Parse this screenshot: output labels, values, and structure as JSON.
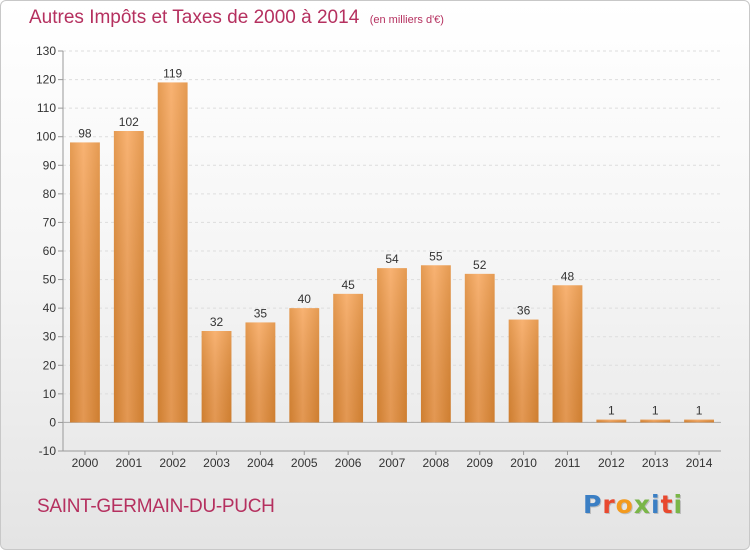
{
  "header": {
    "title": "Autres Impôts et Taxes de 2000 à 2014",
    "subtitle": "(en milliers d'€)"
  },
  "footer": {
    "city": "SAINT-GERMAIN-DU-PUCH",
    "logo_letters": [
      "P",
      "r",
      "o",
      "x",
      "i",
      "t",
      "i"
    ],
    "logo_colors": [
      "#3b7fc4",
      "#e8492f",
      "#f39a1e",
      "#7ab648",
      "#3b7fc4",
      "#e8492f",
      "#7ab648"
    ]
  },
  "colors": {
    "title": "#b5305f",
    "bar_light": "#f7a55a",
    "bar_dark": "#e08934",
    "grid": "#dddddd"
  },
  "chart_data": {
    "type": "bar",
    "title": "Autres Impôts et Taxes de 2000 à 2014",
    "subtitle": "(en milliers d'€)",
    "xlabel": "",
    "ylabel": "",
    "categories": [
      "2000",
      "2001",
      "2002",
      "2003",
      "2004",
      "2005",
      "2006",
      "2007",
      "2008",
      "2009",
      "2010",
      "2011",
      "2012",
      "2013",
      "2014"
    ],
    "values": [
      98,
      102,
      119,
      32,
      35,
      40,
      45,
      54,
      55,
      52,
      36,
      48,
      1,
      1,
      1
    ],
    "data_labels": [
      "98",
      "102",
      "119",
      "32",
      "35",
      "40",
      "45",
      "54",
      "55",
      "52",
      "36",
      "48",
      "1",
      "1",
      "1"
    ],
    "ylim": [
      -10,
      130
    ],
    "yticks": [
      -10,
      0,
      10,
      20,
      30,
      40,
      50,
      60,
      70,
      80,
      90,
      100,
      110,
      120,
      130
    ],
    "ytick_labels": [
      "-10",
      "0",
      "10",
      "20",
      "30",
      "40",
      "50",
      "60",
      "70",
      "80",
      "90",
      "100",
      "110",
      "120",
      "130"
    ],
    "grid": true,
    "legend": "none"
  }
}
